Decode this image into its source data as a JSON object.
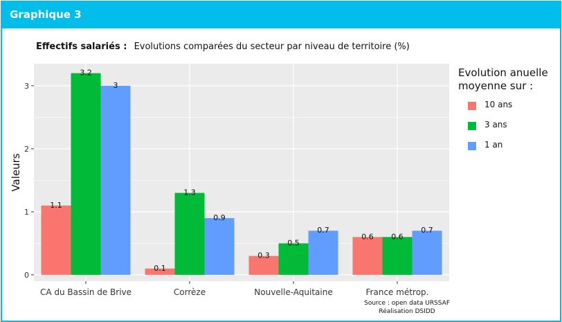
{
  "card": {
    "title": "Graphique 3"
  },
  "subtitle": {
    "bold": "Effectifs salariés :",
    "text": "Evolutions comparées du secteur par niveau de territoire (%)"
  },
  "source": {
    "line1": "Source : open data URSSAF",
    "line2": "Réalisation DSIDD"
  },
  "legend": {
    "title_line1": "Evolution anuelle",
    "title_line2": "moyenne sur :"
  },
  "colors": {
    "background": "#ebebeb",
    "grid": "#ffffff",
    "accent": "#00bdea"
  },
  "chart_data": {
    "type": "bar",
    "ylabel": "Valeurs",
    "xlabel": "",
    "ylim": [
      -0.1,
      3.35
    ],
    "yticks": [
      0,
      1,
      2,
      3
    ],
    "grid": true,
    "legend_position": "right",
    "categories": [
      "CA du Bassin de Brive",
      "Corrèze",
      "Nouvelle-Aquitaine",
      "France métrop."
    ],
    "series": [
      {
        "name": "10 ans",
        "color": "#f8766d",
        "values": [
          1.1,
          0.1,
          0.3,
          0.6
        ]
      },
      {
        "name": "3 ans",
        "color": "#00ba38",
        "values": [
          3.2,
          1.3,
          0.5,
          0.6
        ]
      },
      {
        "name": "1 an",
        "color": "#619cff",
        "values": [
          3,
          0.9,
          0.7,
          0.7
        ]
      }
    ]
  }
}
